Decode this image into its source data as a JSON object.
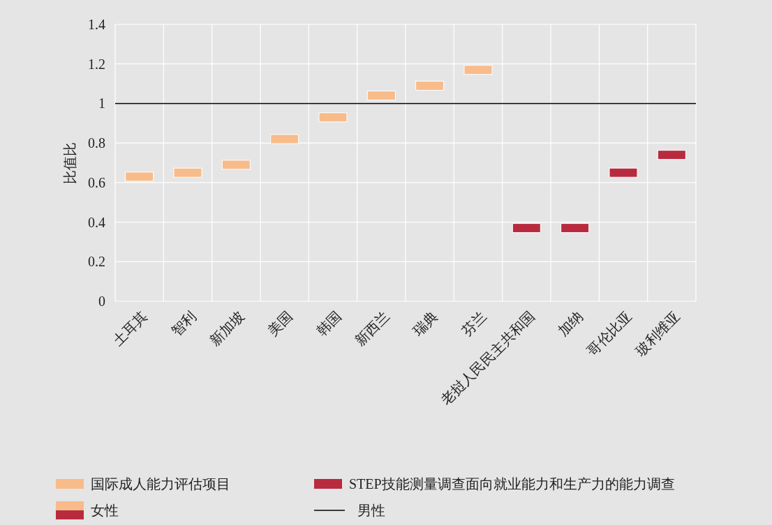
{
  "chart_data": {
    "type": "scatter",
    "marker": "square",
    "ylabel": "比值比",
    "legend": "bottom",
    "legend_title": "女性",
    "grid": true,
    "categories": [
      "土耳其",
      "智利",
      "新加坡",
      "美国",
      "韩国",
      "新西兰",
      "瑞典",
      "芬兰",
      "老挝人民民主共和国",
      "加纳",
      "哥伦比亚",
      "玻利维亚"
    ],
    "ylim": [
      0,
      1.4
    ],
    "yticks": [
      0,
      0.2,
      0.4,
      0.6,
      0.8,
      1,
      1.2,
      1.4
    ],
    "series": [
      {
        "name": "国际成人能力评估项目",
        "color": "#f8bb8a",
        "values": [
          0.63,
          0.65,
          0.69,
          0.82,
          0.93,
          1.04,
          1.09,
          1.17,
          null,
          null,
          null,
          null
        ]
      },
      {
        "name": "STEP技能测量调查面向就业能力和生产力的能力调查",
        "color": "#b82b3e",
        "values": [
          null,
          null,
          null,
          null,
          null,
          null,
          null,
          null,
          0.37,
          0.37,
          0.65,
          0.74
        ]
      }
    ],
    "ref_lines": [
      {
        "axis": "y",
        "value": 1,
        "label": "男性",
        "color": "#000000",
        "line_style": "solid"
      }
    ]
  }
}
